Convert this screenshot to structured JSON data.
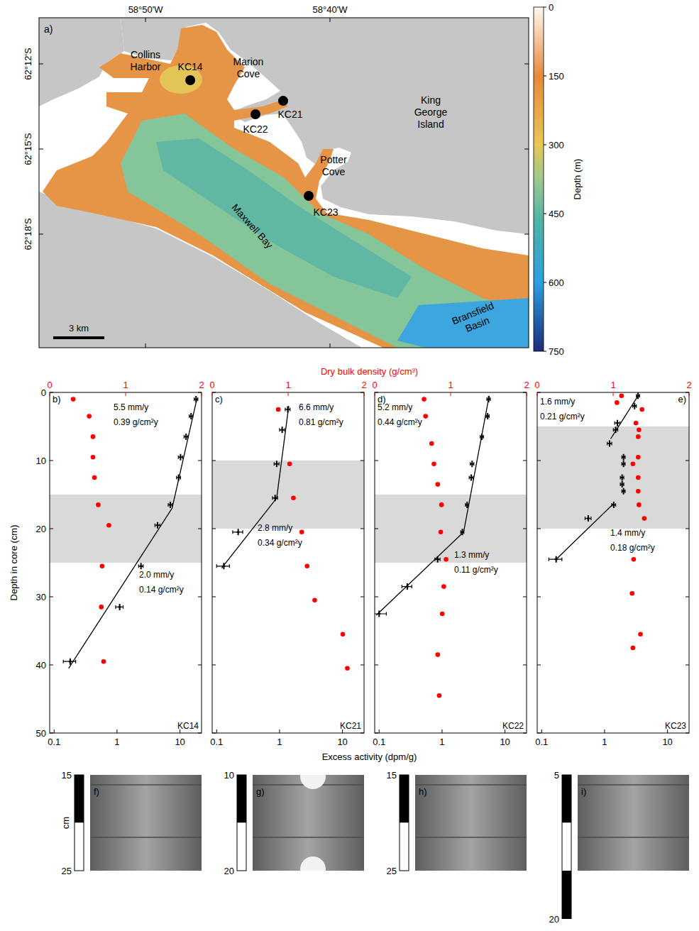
{
  "map": {
    "type": "map",
    "panel_label": "a)",
    "xlim": [
      -58.9295,
      -58.4872
    ],
    "ylim": [
      -62.3667,
      -62.1729
    ],
    "xticks": [
      {
        "value": -58.8333,
        "label": "58°50'W"
      },
      {
        "value": -58.6667,
        "label": "58°40'W"
      }
    ],
    "yticks": [
      {
        "value": -62.2,
        "label": "62°12'S"
      },
      {
        "value": -62.25,
        "label": "62°15'S"
      },
      {
        "value": -62.3,
        "label": "62°18'S"
      }
    ],
    "sites": [
      {
        "name": "KC14",
        "lon": -58.7929,
        "lat": -62.2096
      },
      {
        "name": "KC21",
        "lon": -58.709,
        "lat": -62.2217
      },
      {
        "name": "KC22",
        "lon": -58.734,
        "lat": -62.2296
      },
      {
        "name": "KC23",
        "lon": -58.6859,
        "lat": -62.2775
      }
    ],
    "places": [
      "Collins Harbor",
      "Marion Cove",
      "King George Island",
      "Potter Cove",
      "Maxwell Bay",
      "Bransfield Basin"
    ],
    "scale_bar": "3 km",
    "colorbar": {
      "title": "Depth (m)",
      "lim": [
        0,
        750
      ],
      "ticks": [
        0,
        150,
        300,
        450,
        600,
        750
      ]
    }
  },
  "figure_labels": {
    "x": "Excess activity (dpm/g)",
    "x2": "Dry bulk density (g/cm³)",
    "y": "Depth in core (cm)"
  },
  "chart_data": [
    {
      "type": "scatter",
      "panel_label": "b)",
      "site": "KC14",
      "log": "x",
      "xlim": [
        0.085,
        22
      ],
      "xticks": [
        0.1,
        1,
        10
      ],
      "x2lim": [
        0,
        2
      ],
      "x2ticks": [
        0,
        1,
        2
      ],
      "ylim": [
        50,
        0
      ],
      "yticks": [
        0,
        10,
        20,
        30,
        40,
        50
      ],
      "band": [
        15,
        25
      ],
      "series": [
        {
          "color": "#000000",
          "marker": "cross",
          "x": [
            18,
            15,
            12.5,
            10.2,
            9.5,
            7,
            4.4,
            2.4,
            1.1,
            0.18
          ],
          "errors": [
            1.2,
            1.0,
            0.9,
            0.8,
            0.7,
            0.5,
            0.4,
            0.2,
            0.15,
            0.04
          ],
          "values": [
            1,
            3.5,
            6.5,
            9.5,
            12.5,
            16.5,
            19.5,
            25.5,
            31.5,
            39.5
          ]
        },
        {
          "axis": "x2",
          "color": "#ff0000",
          "marker": "circle",
          "x": [
            0.31,
            0.52,
            0.57,
            0.57,
            0.59,
            0.64,
            0.78,
            0.69,
            0.68,
            0.71
          ],
          "values": [
            1,
            3.5,
            6.5,
            9.5,
            12.5,
            16.5,
            19.5,
            25.5,
            31.5,
            39.5
          ]
        }
      ],
      "fits": [
        {
          "x": [
            18.5,
            7.5
          ],
          "values": [
            1,
            17
          ],
          "labels": [
            "5.5 mm/y",
            "0.39 g/cm²y"
          ]
        },
        {
          "x": [
            7.5,
            0.17
          ],
          "values": [
            17,
            40.5
          ],
          "labels": [
            "2.0 mm/y",
            "0.14 g/cm²y"
          ]
        }
      ]
    },
    {
      "type": "scatter",
      "panel_label": "c)",
      "site": "KC21",
      "log": "x",
      "tick_labels": "x",
      "xlim": [
        0.085,
        22
      ],
      "xticks": [
        0.1,
        1,
        10
      ],
      "x2lim": [
        0,
        2
      ],
      "x2ticks": [
        0,
        1,
        2
      ],
      "ylim": [
        50,
        0
      ],
      "yticks": [
        0,
        10,
        20,
        30,
        40,
        50
      ],
      "band": [
        10,
        20
      ],
      "series": [
        {
          "color": "#000000",
          "marker": "cross",
          "x": [
            1.35,
            1.1,
            0.9,
            0.85,
            0.22,
            0.13
          ],
          "errors": [
            0.12,
            0.1,
            0.08,
            0.08,
            0.04,
            0.03
          ],
          "values": [
            2.5,
            5.5,
            10.5,
            15.5,
            20.5,
            25.5
          ]
        },
        {
          "axis": "x2",
          "color": "#ff0000",
          "marker": "circle",
          "x": [
            0.87,
            1.02,
            1.07,
            1.18,
            1.25,
            1.35,
            1.72,
            1.78
          ],
          "values": [
            2.5,
            10.5,
            15.5,
            20.5,
            25.5,
            30.5,
            35.5,
            40.5
          ]
        }
      ],
      "fits": [
        {
          "x": [
            1.4,
            0.9
          ],
          "values": [
            2,
            15.5
          ],
          "labels": [
            "6.6 mm/y",
            "0.81 g/cm²y"
          ]
        },
        {
          "x": [
            0.9,
            0.12
          ],
          "values": [
            15.5,
            25.8
          ],
          "labels": [
            "2.8 mm/y",
            "0.34 g/cm²y"
          ]
        }
      ]
    },
    {
      "type": "scatter",
      "panel_label": "d)",
      "site": "KC22",
      "log": "x",
      "tick_labels": "x",
      "xlim": [
        0.085,
        22
      ],
      "xticks": [
        0.1,
        1,
        10
      ],
      "x2lim": [
        0,
        2
      ],
      "x2ticks": [
        0,
        1,
        2
      ],
      "ylim": [
        50,
        0
      ],
      "yticks": [
        0,
        10,
        20,
        30,
        40,
        50
      ],
      "band": [
        15,
        25
      ],
      "series": [
        {
          "color": "#000000",
          "marker": "cross",
          "x": [
            5.5,
            5.3,
            4.3,
            3.0,
            2.9,
            2.5,
            2.1,
            0.85,
            0.28,
            0.1
          ],
          "errors": [
            0.35,
            0.3,
            0.25,
            0.2,
            0.2,
            0.15,
            0.12,
            0.08,
            0.05,
            0.03
          ],
          "values": [
            1,
            3.5,
            6.5,
            10.5,
            12.5,
            16.5,
            20.5,
            24.5,
            28.5,
            32.5
          ]
        },
        {
          "axis": "x2",
          "color": "#ff0000",
          "marker": "circle",
          "x": [
            0.65,
            0.67,
            0.75,
            0.78,
            0.83,
            0.88,
            0.87,
            0.94,
            0.91,
            0.89,
            0.83,
            0.85
          ],
          "values": [
            1,
            3.5,
            7.5,
            10.5,
            13.5,
            16.5,
            20.5,
            24.5,
            28.5,
            32.5,
            38.5,
            44.5
          ]
        }
      ],
      "fits": [
        {
          "x": [
            5.6,
            2.2
          ],
          "values": [
            0.5,
            20.5
          ],
          "labels": [
            "5.2 mm/y",
            "0.44 g/cm²y"
          ]
        },
        {
          "x": [
            2.2,
            0.09
          ],
          "values": [
            20.5,
            32.7
          ],
          "labels": [
            "1.3 mm/y",
            "0.11 g/cm²y"
          ]
        }
      ]
    },
    {
      "type": "scatter",
      "panel_label": "e)",
      "site": "KC23",
      "log": "x",
      "tick_labels": "x",
      "xlim": [
        0.085,
        22
      ],
      "xticks": [
        0.1,
        1,
        10
      ],
      "x2lim": [
        0,
        2
      ],
      "x2ticks": [
        0,
        1,
        2
      ],
      "ylim": [
        50,
        0
      ],
      "yticks": [
        0,
        10,
        20,
        30,
        40,
        50
      ],
      "band": [
        5,
        20
      ],
      "series": [
        {
          "color": "#000000",
          "marker": "cross",
          "x": [
            3.4,
            3.0,
            1.6,
            1.5,
            1.2,
            2.0,
            2.0,
            1.9,
            1.9,
            2.0,
            1.4,
            0.55,
            0.17
          ],
          "errors": [
            0.2,
            0.2,
            0.15,
            0.12,
            0.1,
            0.12,
            0.12,
            0.12,
            0.12,
            0.12,
            0.1,
            0.06,
            0.04
          ],
          "values": [
            0.5,
            2,
            4.5,
            5.5,
            7.5,
            9.5,
            10.5,
            12.5,
            13.5,
            14.5,
            16.5,
            18.5,
            24.5
          ]
        },
        {
          "axis": "x2",
          "color": "#ff0000",
          "marker": "circle",
          "x": [
            1.11,
            1.05,
            1.38,
            1.3,
            1.34,
            1.33,
            1.33,
            1.26,
            1.33,
            1.33,
            1.34,
            1.41,
            1.27,
            1.25,
            1.36,
            1.26
          ],
          "values": [
            0.5,
            1.5,
            2.5,
            4.5,
            5.5,
            6.5,
            9.5,
            10.5,
            12.5,
            14.5,
            16.5,
            18.5,
            24.5,
            29.5,
            35.5,
            37.5
          ]
        }
      ],
      "fits": [
        {
          "x": [
            3.4,
            1.25
          ],
          "values": [
            0.5,
            6.8
          ],
          "labels": [
            "1.6 mm/y",
            "0.21 g/cm²y"
          ]
        },
        {
          "x": [
            1.4,
            0.17
          ],
          "values": [
            16.3,
            24.5
          ],
          "labels": [
            "1.4 mm/y",
            "0.18 g/cm²y"
          ]
        }
      ]
    }
  ],
  "xray": [
    {
      "panel_label": "f)",
      "scale_top": 15,
      "scale_bottom": 25,
      "unit": "cm"
    },
    {
      "panel_label": "g)",
      "scale_top": 10,
      "scale_bottom": 20
    },
    {
      "panel_label": "h)",
      "scale_top": 15,
      "scale_bottom": 25
    },
    {
      "panel_label": "i)",
      "scale_top": 5,
      "scale_bottom": 20
    }
  ]
}
